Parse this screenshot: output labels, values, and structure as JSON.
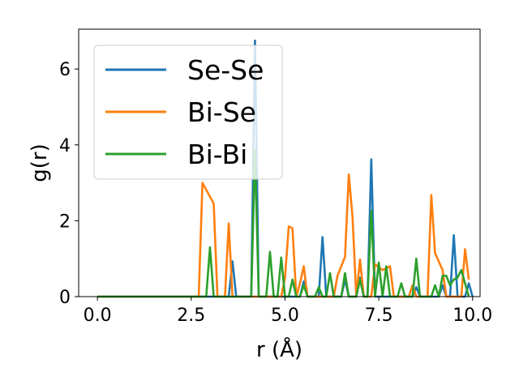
{
  "chart_data": {
    "type": "line",
    "xlabel": "r (Å)",
    "ylabel": "g(r)",
    "xlim": [
      -0.5,
      10.2
    ],
    "ylim": [
      0,
      7.05
    ],
    "xticks": [
      0.0,
      2.5,
      5.0,
      7.5,
      10.0
    ],
    "xtick_labels": [
      "0.0",
      "2.5",
      "5.0",
      "7.5",
      "10.0"
    ],
    "yticks": [
      0,
      2,
      4,
      6
    ],
    "ytick_labels": [
      "0",
      "2",
      "4",
      "6"
    ],
    "grid": false,
    "legend_position": "upper-left",
    "series": [
      {
        "name": "Se-Se",
        "color": "#1f77b4",
        "points": [
          [
            0,
            0
          ],
          [
            3.5,
            0
          ],
          [
            3.6,
            0.93
          ],
          [
            3.7,
            0
          ],
          [
            4.1,
            0
          ],
          [
            4.2,
            6.75
          ],
          [
            4.3,
            0
          ],
          [
            5.4,
            0
          ],
          [
            5.5,
            0.4
          ],
          [
            5.6,
            0
          ],
          [
            5.9,
            0
          ],
          [
            6.0,
            1.57
          ],
          [
            6.1,
            0
          ],
          [
            6.5,
            0
          ],
          [
            6.6,
            0.45
          ],
          [
            6.7,
            0
          ],
          [
            6.9,
            0
          ],
          [
            7.0,
            0.5
          ],
          [
            7.1,
            0
          ],
          [
            7.2,
            0
          ],
          [
            7.3,
            3.62
          ],
          [
            7.4,
            0
          ],
          [
            8.4,
            0
          ],
          [
            8.5,
            0.25
          ],
          [
            8.6,
            0
          ],
          [
            9.1,
            0
          ],
          [
            9.2,
            0.3
          ],
          [
            9.3,
            0
          ],
          [
            9.4,
            0
          ],
          [
            9.5,
            1.62
          ],
          [
            9.6,
            0
          ],
          [
            9.8,
            0
          ],
          [
            9.9,
            0.35
          ],
          [
            10.0,
            0
          ]
        ]
      },
      {
        "name": "Bi-Se",
        "color": "#ff7f0e",
        "points": [
          [
            0,
            0
          ],
          [
            2.7,
            0
          ],
          [
            2.8,
            3.0
          ],
          [
            3.1,
            2.45
          ],
          [
            3.2,
            0
          ],
          [
            3.4,
            0
          ],
          [
            3.5,
            1.93
          ],
          [
            3.6,
            0
          ],
          [
            4.9,
            0
          ],
          [
            5.0,
            0.5
          ],
          [
            5.1,
            1.85
          ],
          [
            5.2,
            1.8
          ],
          [
            5.3,
            0
          ],
          [
            5.4,
            0.35
          ],
          [
            5.5,
            0.8
          ],
          [
            5.6,
            0
          ],
          [
            6.3,
            0
          ],
          [
            6.4,
            0.55
          ],
          [
            6.6,
            1.05
          ],
          [
            6.7,
            3.22
          ],
          [
            6.8,
            2.1
          ],
          [
            6.9,
            0
          ],
          [
            7.0,
            0.98
          ],
          [
            7.1,
            0
          ],
          [
            7.3,
            0
          ],
          [
            7.4,
            0.85
          ],
          [
            7.6,
            0.7
          ],
          [
            7.8,
            0.8
          ],
          [
            7.9,
            0
          ],
          [
            8.3,
            0
          ],
          [
            8.4,
            0.3
          ],
          [
            8.5,
            0
          ],
          [
            8.8,
            0
          ],
          [
            8.9,
            2.68
          ],
          [
            9.0,
            1.15
          ],
          [
            9.2,
            0.7
          ],
          [
            9.3,
            0
          ],
          [
            9.7,
            0
          ],
          [
            9.8,
            1.25
          ],
          [
            9.9,
            0.45
          ]
        ]
      },
      {
        "name": "Bi-Bi",
        "color": "#2ca02c",
        "points": [
          [
            0,
            0
          ],
          [
            2.9,
            0
          ],
          [
            3.0,
            1.3
          ],
          [
            3.1,
            0
          ],
          [
            4.1,
            0
          ],
          [
            4.2,
            3.85
          ],
          [
            4.3,
            0
          ],
          [
            4.5,
            0
          ],
          [
            4.6,
            1.18
          ],
          [
            4.7,
            0
          ],
          [
            4.8,
            0
          ],
          [
            4.9,
            1.03
          ],
          [
            5.0,
            0
          ],
          [
            5.1,
            0
          ],
          [
            5.2,
            0.45
          ],
          [
            5.3,
            0
          ],
          [
            5.4,
            0
          ],
          [
            5.5,
            0.3
          ],
          [
            5.6,
            0
          ],
          [
            5.8,
            0
          ],
          [
            5.9,
            0.25
          ],
          [
            6.0,
            0
          ],
          [
            6.1,
            0
          ],
          [
            6.2,
            0.62
          ],
          [
            6.3,
            0
          ],
          [
            6.5,
            0
          ],
          [
            6.6,
            0.62
          ],
          [
            6.7,
            0
          ],
          [
            6.9,
            0
          ],
          [
            7.0,
            0.45
          ],
          [
            7.1,
            0
          ],
          [
            7.2,
            0
          ],
          [
            7.3,
            2.27
          ],
          [
            7.4,
            0
          ],
          [
            7.5,
            0.9
          ],
          [
            7.6,
            0
          ],
          [
            7.7,
            0.8
          ],
          [
            7.8,
            0
          ],
          [
            8.0,
            0
          ],
          [
            8.1,
            0.35
          ],
          [
            8.2,
            0
          ],
          [
            8.4,
            0
          ],
          [
            8.5,
            1.0
          ],
          [
            8.6,
            0
          ],
          [
            8.9,
            0
          ],
          [
            9.0,
            0.3
          ],
          [
            9.1,
            0
          ],
          [
            9.2,
            0.55
          ],
          [
            9.3,
            0.55
          ],
          [
            9.4,
            0.3
          ],
          [
            9.5,
            0.45
          ],
          [
            9.6,
            0.5
          ],
          [
            9.7,
            0.7
          ],
          [
            9.8,
            0.35
          ],
          [
            9.9,
            0
          ]
        ]
      }
    ]
  }
}
